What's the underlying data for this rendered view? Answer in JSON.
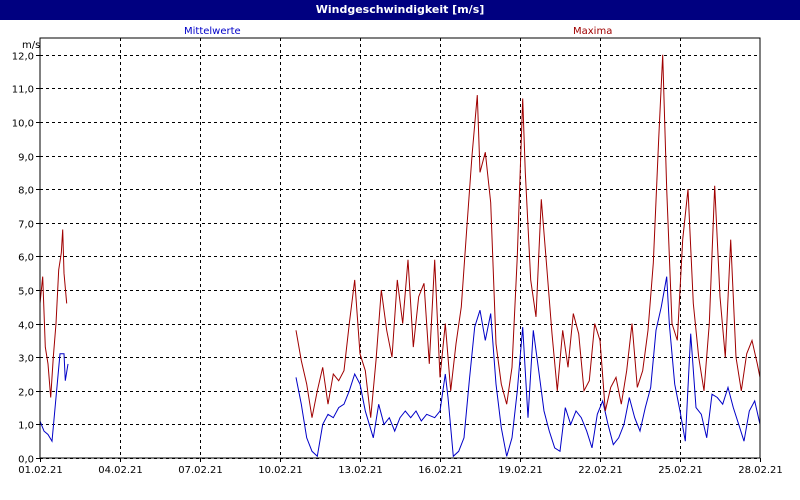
{
  "window": {
    "title": "Windgeschwindigkeit [m/s]"
  },
  "colors": {
    "title_bg": "#000080",
    "mean_series": "#0000c8",
    "max_series": "#a00000"
  },
  "chart_data": {
    "type": "line",
    "ylabel": "m/s",
    "ylim": [
      0,
      12.5
    ],
    "yticks": [
      "0,0",
      "1,0",
      "2,0",
      "3,0",
      "4,0",
      "5,0",
      "6,0",
      "7,0",
      "8,0",
      "9,0",
      "10,0",
      "11,0",
      "12,0"
    ],
    "xlim_days": [
      0,
      27
    ],
    "xticks": [
      "01.02.21",
      "04.02.21",
      "07.02.21",
      "10.02.21",
      "13.02.21",
      "16.02.21",
      "19.02.21",
      "22.02.21",
      "25.02.21",
      "28.02.21"
    ],
    "grid": true,
    "legend_placement": "top",
    "series": [
      {
        "name": "Mittelwerte",
        "segments": [
          [
            [
              0.0,
              1.1
            ],
            [
              0.15,
              0.8
            ],
            [
              0.3,
              0.7
            ],
            [
              0.45,
              0.5
            ],
            [
              0.6,
              1.8
            ],
            [
              0.75,
              3.1
            ],
            [
              0.9,
              3.1
            ],
            [
              0.95,
              2.3
            ],
            [
              1.05,
              2.8
            ]
          ],
          [
            [
              9.6,
              2.4
            ],
            [
              9.8,
              1.6
            ],
            [
              10.0,
              0.6
            ],
            [
              10.2,
              0.2
            ],
            [
              10.4,
              0.05
            ],
            [
              10.6,
              1.0
            ],
            [
              10.8,
              1.3
            ],
            [
              11.0,
              1.2
            ],
            [
              11.2,
              1.5
            ],
            [
              11.4,
              1.6
            ],
            [
              11.6,
              2.0
            ],
            [
              11.8,
              2.5
            ],
            [
              12.0,
              2.2
            ],
            [
              12.2,
              1.4
            ],
            [
              12.5,
              0.6
            ],
            [
              12.7,
              1.6
            ],
            [
              12.9,
              1.0
            ],
            [
              13.1,
              1.2
            ],
            [
              13.3,
              0.8
            ],
            [
              13.5,
              1.2
            ],
            [
              13.7,
              1.4
            ],
            [
              13.9,
              1.2
            ],
            [
              14.1,
              1.4
            ],
            [
              14.3,
              1.1
            ],
            [
              14.5,
              1.3
            ],
            [
              14.8,
              1.2
            ],
            [
              15.0,
              1.4
            ],
            [
              15.2,
              2.5
            ],
            [
              15.3,
              1.8
            ],
            [
              15.5,
              0.05
            ],
            [
              15.7,
              0.2
            ],
            [
              15.9,
              0.6
            ],
            [
              16.1,
              2.3
            ],
            [
              16.3,
              3.9
            ],
            [
              16.5,
              4.4
            ],
            [
              16.7,
              3.5
            ],
            [
              16.9,
              4.3
            ],
            [
              17.1,
              2.2
            ],
            [
              17.3,
              0.9
            ],
            [
              17.5,
              0.05
            ],
            [
              17.7,
              0.6
            ],
            [
              17.9,
              2.0
            ],
            [
              18.1,
              3.9
            ],
            [
              18.3,
              1.2
            ],
            [
              18.5,
              3.8
            ],
            [
              18.7,
              2.6
            ],
            [
              18.9,
              1.4
            ],
            [
              19.1,
              0.8
            ],
            [
              19.3,
              0.3
            ],
            [
              19.5,
              0.2
            ],
            [
              19.7,
              1.5
            ],
            [
              19.9,
              1.0
            ],
            [
              20.1,
              1.4
            ],
            [
              20.3,
              1.2
            ],
            [
              20.5,
              0.8
            ],
            [
              20.7,
              0.3
            ],
            [
              20.9,
              1.3
            ],
            [
              21.1,
              1.7
            ],
            [
              21.3,
              1.0
            ],
            [
              21.5,
              0.4
            ],
            [
              21.7,
              0.6
            ],
            [
              21.9,
              1.0
            ],
            [
              22.1,
              1.8
            ],
            [
              22.3,
              1.2
            ],
            [
              22.5,
              0.8
            ],
            [
              22.7,
              1.5
            ],
            [
              22.9,
              2.1
            ],
            [
              23.1,
              3.8
            ],
            [
              23.3,
              4.5
            ],
            [
              23.5,
              5.4
            ],
            [
              23.6,
              4.0
            ],
            [
              23.8,
              2.2
            ],
            [
              24.0,
              1.4
            ],
            [
              24.2,
              0.5
            ],
            [
              24.4,
              3.7
            ],
            [
              24.6,
              1.5
            ],
            [
              24.8,
              1.3
            ],
            [
              25.0,
              0.6
            ],
            [
              25.2,
              1.9
            ],
            [
              25.4,
              1.8
            ],
            [
              25.6,
              1.6
            ],
            [
              25.8,
              2.1
            ],
            [
              26.0,
              1.5
            ],
            [
              26.2,
              1.0
            ],
            [
              26.4,
              0.5
            ],
            [
              26.6,
              1.4
            ],
            [
              26.8,
              1.7
            ],
            [
              27.0,
              1.0
            ]
          ]
        ]
      },
      {
        "name": "Maxima",
        "segments": [
          [
            [
              0.0,
              4.6
            ],
            [
              0.1,
              5.4
            ],
            [
              0.2,
              3.3
            ],
            [
              0.3,
              2.8
            ],
            [
              0.4,
              1.8
            ],
            [
              0.5,
              3.0
            ],
            [
              0.6,
              4.0
            ],
            [
              0.7,
              5.6
            ],
            [
              0.8,
              6.1
            ],
            [
              0.85,
              6.8
            ],
            [
              0.9,
              5.5
            ],
            [
              1.0,
              4.6
            ]
          ],
          [
            [
              9.6,
              3.8
            ],
            [
              9.8,
              2.9
            ],
            [
              10.0,
              2.2
            ],
            [
              10.2,
              1.2
            ],
            [
              10.4,
              2.0
            ],
            [
              10.6,
              2.7
            ],
            [
              10.8,
              1.6
            ],
            [
              11.0,
              2.5
            ],
            [
              11.2,
              2.3
            ],
            [
              11.4,
              2.6
            ],
            [
              11.6,
              4.0
            ],
            [
              11.8,
              5.3
            ],
            [
              12.0,
              3.1
            ],
            [
              12.2,
              2.6
            ],
            [
              12.4,
              1.2
            ],
            [
              12.6,
              2.9
            ],
            [
              12.8,
              5.0
            ],
            [
              13.0,
              3.8
            ],
            [
              13.2,
              3.0
            ],
            [
              13.4,
              5.3
            ],
            [
              13.6,
              4.0
            ],
            [
              13.8,
              5.9
            ],
            [
              14.0,
              3.3
            ],
            [
              14.2,
              4.8
            ],
            [
              14.4,
              5.2
            ],
            [
              14.6,
              2.8
            ],
            [
              14.8,
              5.9
            ],
            [
              15.0,
              2.4
            ],
            [
              15.2,
              4.0
            ],
            [
              15.4,
              2.0
            ],
            [
              15.6,
              3.4
            ],
            [
              15.8,
              4.5
            ],
            [
              16.0,
              6.8
            ],
            [
              16.2,
              9.0
            ],
            [
              16.4,
              10.8
            ],
            [
              16.5,
              8.5
            ],
            [
              16.7,
              9.1
            ],
            [
              16.9,
              7.6
            ],
            [
              17.1,
              3.4
            ],
            [
              17.3,
              2.2
            ],
            [
              17.5,
              1.6
            ],
            [
              17.7,
              2.7
            ],
            [
              17.9,
              6.0
            ],
            [
              18.1,
              10.7
            ],
            [
              18.2,
              8.5
            ],
            [
              18.4,
              5.3
            ],
            [
              18.6,
              4.2
            ],
            [
              18.8,
              7.7
            ],
            [
              19.0,
              5.7
            ],
            [
              19.2,
              3.7
            ],
            [
              19.4,
              2.0
            ],
            [
              19.6,
              3.8
            ],
            [
              19.8,
              2.7
            ],
            [
              20.0,
              4.3
            ],
            [
              20.2,
              3.7
            ],
            [
              20.4,
              2.0
            ],
            [
              20.6,
              2.3
            ],
            [
              20.8,
              4.0
            ],
            [
              21.0,
              3.5
            ],
            [
              21.2,
              1.4
            ],
            [
              21.4,
              2.1
            ],
            [
              21.6,
              2.4
            ],
            [
              21.8,
              1.6
            ],
            [
              22.0,
              2.6
            ],
            [
              22.2,
              4.0
            ],
            [
              22.4,
              2.1
            ],
            [
              22.6,
              2.6
            ],
            [
              22.8,
              3.8
            ],
            [
              23.0,
              5.8
            ],
            [
              23.2,
              9.5
            ],
            [
              23.35,
              12.0
            ],
            [
              23.5,
              8.0
            ],
            [
              23.7,
              4.0
            ],
            [
              23.9,
              3.5
            ],
            [
              24.1,
              6.5
            ],
            [
              24.3,
              8.0
            ],
            [
              24.5,
              4.6
            ],
            [
              24.7,
              3.0
            ],
            [
              24.9,
              2.0
            ],
            [
              25.1,
              4.0
            ],
            [
              25.3,
              8.1
            ],
            [
              25.5,
              4.8
            ],
            [
              25.7,
              3.0
            ],
            [
              25.9,
              6.5
            ],
            [
              26.1,
              3.0
            ],
            [
              26.3,
              2.0
            ],
            [
              26.5,
              3.1
            ],
            [
              26.7,
              3.5
            ],
            [
              26.9,
              2.8
            ],
            [
              27.0,
              2.4
            ]
          ]
        ]
      }
    ]
  }
}
